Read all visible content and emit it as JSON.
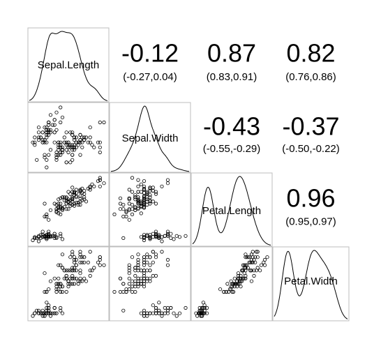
{
  "chart_data": {
    "type": "scatter-matrix",
    "title": "",
    "variables": [
      "Sepal.Length",
      "Sepal.Width",
      "Petal.Length",
      "Petal.Width"
    ],
    "ranges": {
      "Sepal.Length": [
        4.3,
        7.9
      ],
      "Sepal.Width": [
        2.0,
        4.4
      ],
      "Petal.Length": [
        1.0,
        6.9
      ],
      "Petal.Width": [
        0.1,
        2.5
      ]
    },
    "correlations": [
      {
        "row": 0,
        "col": 1,
        "value": "-0.12",
        "ci": "(-0.27,0.04)"
      },
      {
        "row": 0,
        "col": 2,
        "value": "0.87",
        "ci": "(0.83,0.91)"
      },
      {
        "row": 0,
        "col": 3,
        "value": "0.82",
        "ci": "(0.76,0.86)"
      },
      {
        "row": 1,
        "col": 2,
        "value": "-0.43",
        "ci": "(-0.55,-0.29)"
      },
      {
        "row": 1,
        "col": 3,
        "value": "-0.37",
        "ci": "(-0.50,-0.22)"
      },
      {
        "row": 2,
        "col": 3,
        "value": "0.96",
        "ci": "(0.95,0.97)"
      }
    ],
    "observations": [
      [
        5.1,
        3.5,
        1.4,
        0.2
      ],
      [
        4.9,
        3.0,
        1.4,
        0.2
      ],
      [
        4.7,
        3.2,
        1.3,
        0.2
      ],
      [
        4.6,
        3.1,
        1.5,
        0.2
      ],
      [
        5.0,
        3.6,
        1.4,
        0.2
      ],
      [
        5.4,
        3.9,
        1.7,
        0.4
      ],
      [
        4.6,
        3.4,
        1.4,
        0.3
      ],
      [
        5.0,
        3.4,
        1.5,
        0.2
      ],
      [
        4.4,
        2.9,
        1.4,
        0.2
      ],
      [
        4.9,
        3.1,
        1.5,
        0.1
      ],
      [
        5.4,
        3.7,
        1.5,
        0.2
      ],
      [
        4.8,
        3.4,
        1.6,
        0.2
      ],
      [
        4.8,
        3.0,
        1.4,
        0.1
      ],
      [
        4.3,
        3.0,
        1.1,
        0.1
      ],
      [
        5.8,
        4.0,
        1.2,
        0.2
      ],
      [
        5.7,
        4.4,
        1.5,
        0.4
      ],
      [
        5.4,
        3.9,
        1.3,
        0.4
      ],
      [
        5.1,
        3.5,
        1.4,
        0.3
      ],
      [
        5.7,
        3.8,
        1.7,
        0.3
      ],
      [
        5.1,
        3.8,
        1.5,
        0.3
      ],
      [
        5.4,
        3.4,
        1.7,
        0.2
      ],
      [
        5.1,
        3.7,
        1.5,
        0.4
      ],
      [
        4.6,
        3.6,
        1.0,
        0.2
      ],
      [
        5.1,
        3.3,
        1.7,
        0.5
      ],
      [
        4.8,
        3.4,
        1.9,
        0.2
      ],
      [
        5.0,
        3.0,
        1.6,
        0.2
      ],
      [
        5.0,
        3.4,
        1.6,
        0.4
      ],
      [
        5.2,
        3.5,
        1.5,
        0.2
      ],
      [
        5.2,
        3.4,
        1.4,
        0.2
      ],
      [
        4.7,
        3.2,
        1.6,
        0.2
      ],
      [
        4.8,
        3.1,
        1.6,
        0.2
      ],
      [
        5.4,
        3.4,
        1.5,
        0.4
      ],
      [
        5.2,
        4.1,
        1.5,
        0.1
      ],
      [
        5.5,
        4.2,
        1.4,
        0.2
      ],
      [
        4.9,
        3.1,
        1.5,
        0.2
      ],
      [
        5.0,
        3.2,
        1.2,
        0.2
      ],
      [
        5.5,
        3.5,
        1.3,
        0.2
      ],
      [
        4.9,
        3.6,
        1.4,
        0.1
      ],
      [
        4.4,
        3.0,
        1.3,
        0.2
      ],
      [
        5.1,
        3.4,
        1.5,
        0.2
      ],
      [
        5.0,
        3.5,
        1.3,
        0.3
      ],
      [
        4.5,
        2.3,
        1.3,
        0.3
      ],
      [
        4.4,
        3.2,
        1.3,
        0.2
      ],
      [
        5.0,
        3.5,
        1.6,
        0.6
      ],
      [
        5.1,
        3.8,
        1.9,
        0.4
      ],
      [
        4.8,
        3.0,
        1.4,
        0.3
      ],
      [
        5.1,
        3.8,
        1.6,
        0.2
      ],
      [
        4.6,
        3.2,
        1.4,
        0.2
      ],
      [
        5.3,
        3.7,
        1.5,
        0.2
      ],
      [
        5.0,
        3.3,
        1.4,
        0.2
      ],
      [
        7.0,
        3.2,
        4.7,
        1.4
      ],
      [
        6.4,
        3.2,
        4.5,
        1.5
      ],
      [
        6.9,
        3.1,
        4.9,
        1.5
      ],
      [
        5.5,
        2.3,
        4.0,
        1.3
      ],
      [
        6.5,
        2.8,
        4.6,
        1.5
      ],
      [
        5.7,
        2.8,
        4.5,
        1.3
      ],
      [
        6.3,
        3.3,
        4.7,
        1.6
      ],
      [
        4.9,
        2.4,
        3.3,
        1.0
      ],
      [
        6.6,
        2.9,
        4.6,
        1.3
      ],
      [
        5.2,
        2.7,
        3.9,
        1.4
      ],
      [
        5.0,
        2.0,
        3.5,
        1.0
      ],
      [
        5.9,
        3.0,
        4.2,
        1.5
      ],
      [
        6.0,
        2.2,
        4.0,
        1.0
      ],
      [
        6.1,
        2.9,
        4.7,
        1.4
      ],
      [
        5.6,
        2.9,
        3.6,
        1.3
      ],
      [
        6.7,
        3.1,
        4.4,
        1.4
      ],
      [
        5.6,
        3.0,
        4.5,
        1.5
      ],
      [
        5.8,
        2.7,
        4.1,
        1.0
      ],
      [
        6.2,
        2.2,
        4.5,
        1.5
      ],
      [
        5.6,
        2.5,
        3.9,
        1.1
      ],
      [
        5.9,
        3.2,
        4.8,
        1.8
      ],
      [
        6.1,
        2.8,
        4.0,
        1.3
      ],
      [
        6.3,
        2.5,
        4.9,
        1.5
      ],
      [
        6.1,
        2.8,
        4.7,
        1.2
      ],
      [
        6.4,
        2.9,
        4.3,
        1.3
      ],
      [
        6.6,
        3.0,
        4.4,
        1.4
      ],
      [
        6.8,
        2.8,
        4.8,
        1.4
      ],
      [
        6.7,
        3.0,
        5.0,
        1.7
      ],
      [
        6.0,
        2.9,
        4.5,
        1.5
      ],
      [
        5.7,
        2.6,
        3.5,
        1.0
      ],
      [
        5.5,
        2.4,
        3.8,
        1.1
      ],
      [
        5.5,
        2.4,
        3.7,
        1.0
      ],
      [
        5.8,
        2.7,
        3.9,
        1.2
      ],
      [
        6.0,
        2.7,
        5.1,
        1.6
      ],
      [
        5.4,
        3.0,
        4.5,
        1.5
      ],
      [
        6.0,
        3.4,
        4.5,
        1.6
      ],
      [
        6.7,
        3.1,
        4.7,
        1.5
      ],
      [
        6.3,
        2.3,
        4.4,
        1.3
      ],
      [
        5.6,
        3.0,
        4.1,
        1.3
      ],
      [
        5.5,
        2.5,
        4.0,
        1.3
      ],
      [
        5.5,
        2.6,
        4.4,
        1.2
      ],
      [
        6.1,
        3.0,
        4.6,
        1.4
      ],
      [
        5.8,
        2.6,
        4.0,
        1.2
      ],
      [
        5.0,
        2.3,
        3.3,
        1.0
      ],
      [
        5.6,
        2.7,
        4.2,
        1.3
      ],
      [
        5.7,
        3.0,
        4.2,
        1.2
      ],
      [
        5.7,
        2.9,
        4.2,
        1.3
      ],
      [
        6.2,
        2.9,
        4.3,
        1.3
      ],
      [
        5.1,
        2.5,
        3.0,
        1.1
      ],
      [
        5.7,
        2.8,
        4.1,
        1.3
      ],
      [
        6.3,
        3.3,
        6.0,
        2.5
      ],
      [
        5.8,
        2.7,
        5.1,
        1.9
      ],
      [
        7.1,
        3.0,
        5.9,
        2.1
      ],
      [
        6.3,
        2.9,
        5.6,
        1.8
      ],
      [
        6.5,
        3.0,
        5.8,
        2.2
      ],
      [
        7.6,
        3.0,
        6.6,
        2.1
      ],
      [
        4.9,
        2.5,
        4.5,
        1.7
      ],
      [
        7.3,
        2.9,
        6.3,
        1.8
      ],
      [
        6.7,
        2.5,
        5.8,
        1.8
      ],
      [
        7.2,
        3.6,
        6.1,
        2.5
      ],
      [
        6.5,
        3.2,
        5.1,
        2.0
      ],
      [
        6.4,
        2.7,
        5.3,
        1.9
      ],
      [
        6.8,
        3.0,
        5.5,
        2.1
      ],
      [
        5.7,
        2.5,
        5.0,
        2.0
      ],
      [
        5.8,
        2.8,
        5.1,
        2.4
      ],
      [
        6.4,
        3.2,
        5.3,
        2.3
      ],
      [
        6.5,
        3.0,
        5.5,
        1.8
      ],
      [
        7.7,
        3.8,
        6.7,
        2.2
      ],
      [
        7.7,
        2.6,
        6.9,
        2.3
      ],
      [
        6.0,
        2.2,
        5.0,
        1.5
      ],
      [
        6.9,
        3.2,
        5.7,
        2.3
      ],
      [
        5.6,
        2.8,
        4.9,
        2.0
      ],
      [
        7.7,
        2.8,
        6.7,
        2.0
      ],
      [
        6.3,
        2.7,
        4.9,
        1.8
      ],
      [
        6.7,
        3.3,
        5.7,
        2.1
      ],
      [
        7.2,
        3.2,
        6.0,
        1.8
      ],
      [
        6.2,
        2.8,
        4.8,
        1.8
      ],
      [
        6.1,
        3.0,
        4.9,
        1.8
      ],
      [
        6.4,
        2.8,
        5.6,
        2.1
      ],
      [
        7.2,
        3.0,
        5.8,
        1.6
      ],
      [
        7.4,
        2.8,
        6.1,
        1.9
      ],
      [
        7.9,
        3.8,
        6.4,
        2.0
      ],
      [
        6.4,
        2.8,
        5.6,
        2.2
      ],
      [
        6.3,
        2.8,
        5.1,
        1.5
      ],
      [
        6.1,
        2.6,
        5.6,
        1.4
      ],
      [
        7.7,
        3.0,
        6.1,
        2.3
      ],
      [
        6.3,
        3.4,
        5.6,
        2.4
      ],
      [
        6.4,
        3.1,
        5.5,
        1.8
      ],
      [
        6.0,
        3.0,
        4.8,
        1.8
      ],
      [
        6.9,
        3.1,
        5.4,
        2.1
      ],
      [
        6.7,
        3.1,
        5.6,
        2.4
      ],
      [
        6.9,
        3.1,
        5.1,
        2.3
      ],
      [
        5.8,
        2.7,
        5.1,
        1.9
      ],
      [
        6.8,
        3.2,
        5.9,
        2.3
      ],
      [
        6.7,
        3.3,
        5.7,
        2.5
      ],
      [
        6.7,
        3.0,
        5.2,
        2.3
      ],
      [
        6.3,
        2.5,
        5.0,
        1.9
      ],
      [
        6.5,
        3.0,
        5.2,
        2.0
      ],
      [
        6.2,
        3.4,
        5.4,
        2.3
      ],
      [
        5.9,
        3.0,
        5.1,
        1.8
      ]
    ]
  }
}
